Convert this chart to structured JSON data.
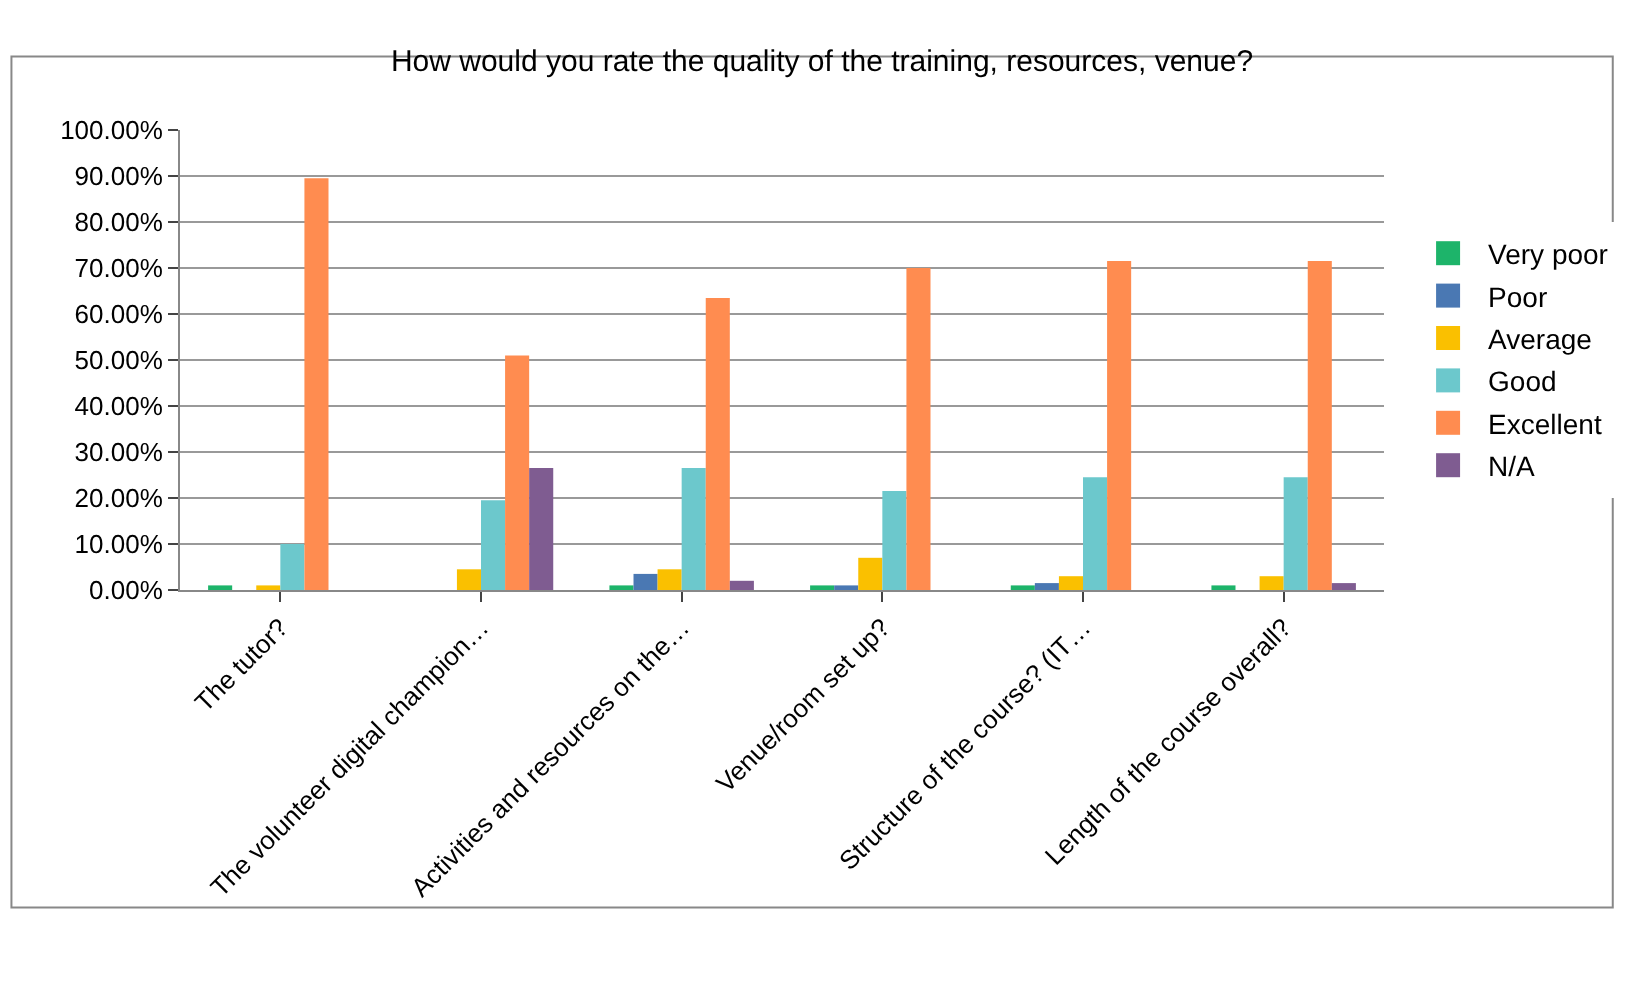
{
  "chart_data": {
    "type": "bar",
    "title": "How would you rate the quality of the training, resources, venue?",
    "categories": [
      "The tutor?",
      "The volunteer digital champion…",
      "Activities and resources on the…",
      "Venue/room set up?",
      "Structure of the course? (IT…",
      "Length of the course overall?"
    ],
    "series": [
      {
        "name": "Very poor",
        "color": "#1db46a",
        "values": [
          1,
          0,
          1,
          1,
          1,
          1
        ]
      },
      {
        "name": "Poor",
        "color": "#4a78b3",
        "values": [
          0,
          0,
          3.5,
          1,
          1.5,
          0
        ]
      },
      {
        "name": "Average",
        "color": "#fac000",
        "values": [
          1,
          4.5,
          4.5,
          7,
          3,
          3
        ]
      },
      {
        "name": "Good",
        "color": "#6cc8cc",
        "values": [
          10,
          19.5,
          26.5,
          21.5,
          24.5,
          24.5
        ]
      },
      {
        "name": "Excellent",
        "color": "#ff8c50",
        "values": [
          89.5,
          51,
          63.5,
          70,
          71.5,
          71.5
        ]
      },
      {
        "name": "N/A",
        "color": "#7f5c91",
        "values": [
          0,
          26.5,
          2,
          0,
          0,
          1.5
        ]
      }
    ],
    "ylim": [
      0,
      100
    ],
    "yticks": [
      {
        "value": 0,
        "label": "0.00%"
      },
      {
        "value": 10,
        "label": "10.00%"
      },
      {
        "value": 20,
        "label": "20.00%"
      },
      {
        "value": 30,
        "label": "30.00%"
      },
      {
        "value": 40,
        "label": "40.00%"
      },
      {
        "value": 50,
        "label": "50.00%"
      },
      {
        "value": 60,
        "label": "60.00%"
      },
      {
        "value": 70,
        "label": "70.00%"
      },
      {
        "value": 80,
        "label": "80.00%"
      },
      {
        "value": 90,
        "label": "90.00%"
      },
      {
        "value": 100,
        "label": "100.00%"
      }
    ],
    "grid": "y",
    "legend": "right"
  }
}
